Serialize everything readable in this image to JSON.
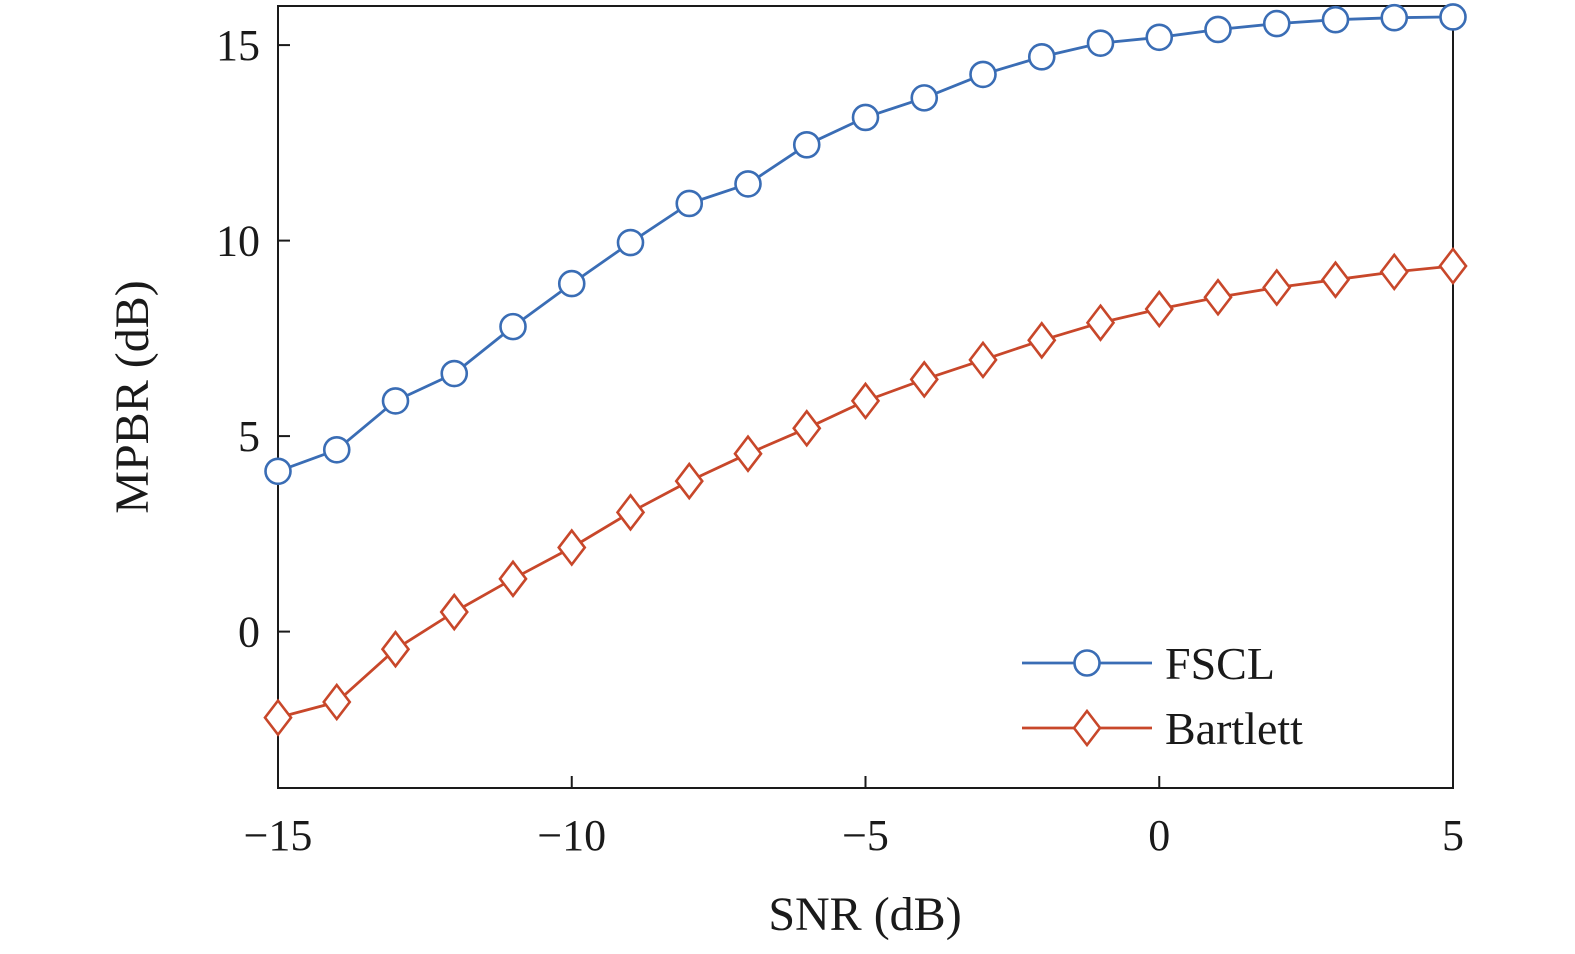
{
  "chart_data": {
    "type": "line",
    "title": "",
    "xlabel": "SNR (dB)",
    "ylabel": "MPBR (dB)",
    "xlim": [
      -15,
      5
    ],
    "ylim": [
      -4,
      16
    ],
    "xticks": [
      -15,
      -10,
      -5,
      0,
      5
    ],
    "xtick_labels": [
      "−15",
      "−10",
      "−5",
      "0",
      "5"
    ],
    "yticks": [
      0,
      5,
      10,
      15
    ],
    "ytick_labels": [
      "0",
      "5",
      "10",
      "15"
    ],
    "grid": false,
    "legend_position": "bottom-right",
    "x": [
      -15,
      -14,
      -13,
      -12,
      -11,
      -10,
      -9,
      -8,
      -7,
      -6,
      -5,
      -4,
      -3,
      -2,
      -1,
      0,
      1,
      2,
      3,
      4,
      5
    ],
    "series": [
      {
        "name": "FSCL",
        "color": "#3a6db5",
        "marker": "circle",
        "values": [
          4.1,
          4.65,
          5.9,
          6.6,
          7.8,
          8.9,
          9.95,
          10.95,
          11.45,
          12.45,
          13.15,
          13.65,
          14.25,
          14.7,
          15.05,
          15.2,
          15.4,
          15.55,
          15.65,
          15.7,
          15.72
        ]
      },
      {
        "name": "Bartlett",
        "color": "#c8472a",
        "marker": "diamond",
        "values": [
          -2.2,
          -1.8,
          -0.45,
          0.5,
          1.35,
          2.15,
          3.05,
          3.85,
          4.55,
          5.2,
          5.9,
          6.45,
          6.95,
          7.45,
          7.9,
          8.25,
          8.55,
          8.8,
          9.0,
          9.2,
          9.35
        ]
      }
    ]
  }
}
